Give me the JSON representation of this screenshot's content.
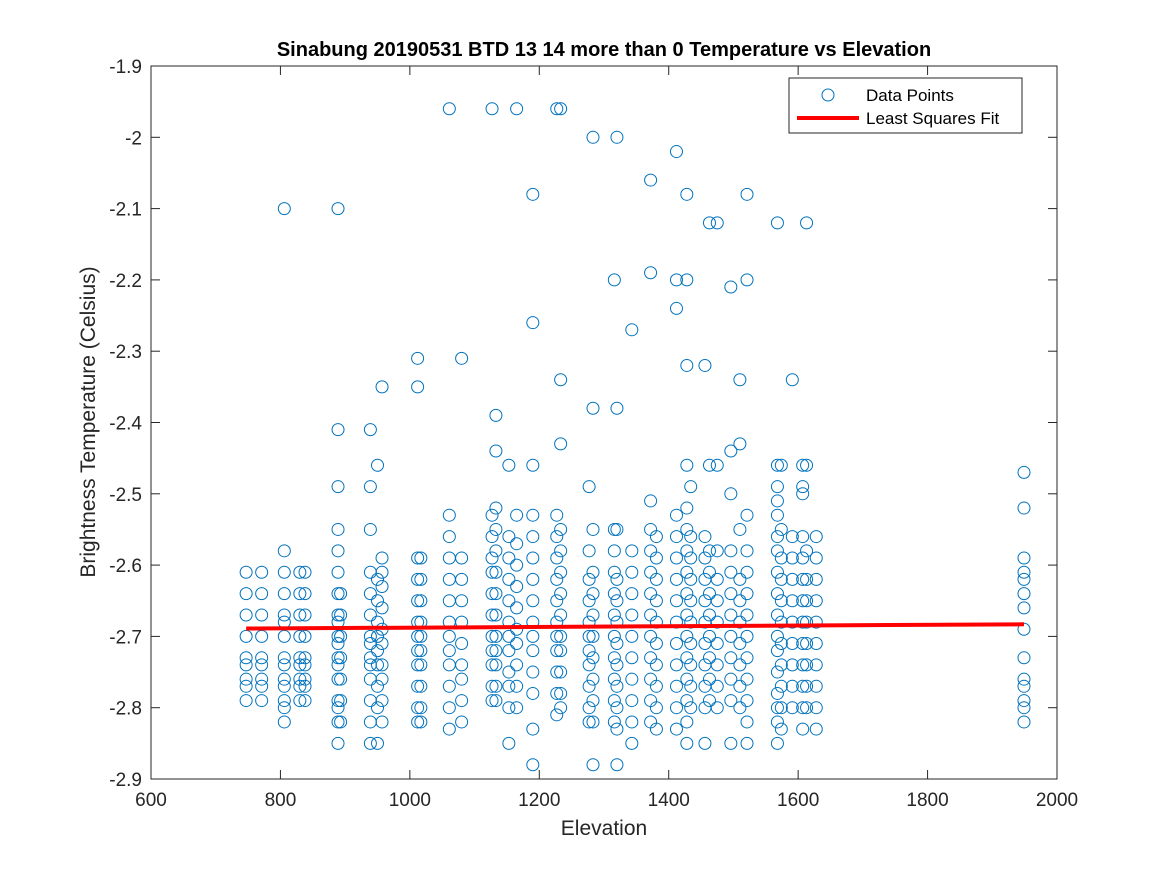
{
  "chart_data": {
    "type": "scatter",
    "title": "Sinabung 20190531 BTD 13 14 more than 0 Temperature vs Elevation",
    "xlabel": "Elevation",
    "ylabel": "Brightness Temperature (Celsius)",
    "xlim": [
      600,
      2000
    ],
    "ylim": [
      -2.9,
      -1.9
    ],
    "xticks": [
      600,
      800,
      1000,
      1200,
      1400,
      1600,
      1800,
      2000
    ],
    "yticks": [
      -1.9,
      -2,
      -2.1,
      -2.2,
      -2.3,
      -2.4,
      -2.5,
      -2.6,
      -2.7,
      -2.8,
      -2.9
    ],
    "xtick_labels": [
      "600",
      "800",
      "1000",
      "1200",
      "1400",
      "1600",
      "1800",
      "2000"
    ],
    "ytick_labels": [
      "-1.9",
      "-2",
      "-2.1",
      "-2.2",
      "-2.3",
      "-2.4",
      "-2.5",
      "-2.6",
      "-2.7",
      "-2.8",
      "-2.9"
    ],
    "grid": false,
    "box": true,
    "legend_position": "top-right",
    "series": [
      {
        "name": "Data Points",
        "kind": "scatter",
        "marker": "circle",
        "color": "#0072BD",
        "columns": [
          {
            "x": 747,
            "y": [
              -2.61,
              -2.64,
              -2.67,
              -2.7,
              -2.73,
              -2.74,
              -2.76,
              -2.77,
              -2.79
            ]
          },
          {
            "x": 771,
            "y": [
              -2.61,
              -2.64,
              -2.67,
              -2.7,
              -2.73,
              -2.74,
              -2.76,
              -2.77,
              -2.79
            ]
          },
          {
            "x": 806,
            "y": [
              -2.1,
              -2.58,
              -2.61,
              -2.64,
              -2.67,
              -2.68,
              -2.7,
              -2.73,
              -2.74,
              -2.76,
              -2.77,
              -2.79,
              -2.8,
              -2.82
            ]
          },
          {
            "x": 830,
            "y": [
              -2.61,
              -2.64,
              -2.67,
              -2.7,
              -2.73,
              -2.74,
              -2.76,
              -2.77,
              -2.79
            ]
          },
          {
            "x": 838,
            "y": [
              -2.61,
              -2.64,
              -2.67,
              -2.7,
              -2.73,
              -2.74,
              -2.76,
              -2.77,
              -2.79
            ]
          },
          {
            "x": 889,
            "y": [
              -2.1,
              -2.41,
              -2.49,
              -2.55,
              -2.58,
              -2.61,
              -2.64,
              -2.67,
              -2.68,
              -2.7,
              -2.71,
              -2.73,
              -2.74,
              -2.76,
              -2.79,
              -2.8,
              -2.82,
              -2.85
            ]
          },
          {
            "x": 893,
            "y": [
              -2.64,
              -2.67,
              -2.7,
              -2.73,
              -2.76,
              -2.79,
              -2.82
            ]
          },
          {
            "x": 939,
            "y": [
              -2.41,
              -2.49,
              -2.55,
              -2.61,
              -2.64,
              -2.67,
              -2.7,
              -2.71,
              -2.73,
              -2.74,
              -2.76,
              -2.79,
              -2.82,
              -2.85
            ]
          },
          {
            "x": 950,
            "y": [
              -2.46,
              -2.62,
              -2.65,
              -2.68,
              -2.7,
              -2.72,
              -2.74,
              -2.77,
              -2.8,
              -2.85
            ]
          },
          {
            "x": 957,
            "y": [
              -2.35,
              -2.59,
              -2.61,
              -2.63,
              -2.66,
              -2.69,
              -2.71,
              -2.74,
              -2.76,
              -2.79,
              -2.82
            ]
          },
          {
            "x": 1012,
            "y": [
              -2.31,
              -2.35,
              -2.59,
              -2.62,
              -2.65,
              -2.68,
              -2.7,
              -2.72,
              -2.74,
              -2.77,
              -2.8,
              -2.82
            ]
          },
          {
            "x": 1017,
            "y": [
              -2.59,
              -2.62,
              -2.65,
              -2.68,
              -2.7,
              -2.72,
              -2.74,
              -2.77,
              -2.8,
              -2.82
            ]
          },
          {
            "x": 1061,
            "y": [
              -1.96,
              -2.53,
              -2.56,
              -2.59,
              -2.62,
              -2.65,
              -2.68,
              -2.7,
              -2.72,
              -2.74,
              -2.77,
              -2.8,
              -2.83
            ]
          },
          {
            "x": 1080,
            "y": [
              -2.31,
              -2.59,
              -2.62,
              -2.65,
              -2.68,
              -2.71,
              -2.74,
              -2.76,
              -2.79,
              -2.82
            ]
          },
          {
            "x": 1127,
            "y": [
              -1.96,
              -2.53,
              -2.56,
              -2.59,
              -2.61,
              -2.64,
              -2.67,
              -2.7,
              -2.72,
              -2.74,
              -2.77,
              -2.79
            ]
          },
          {
            "x": 1133,
            "y": [
              -2.39,
              -2.44,
              -2.52,
              -2.55,
              -2.58,
              -2.61,
              -2.64,
              -2.67,
              -2.7,
              -2.72,
              -2.74,
              -2.77,
              -2.79
            ]
          },
          {
            "x": 1153,
            "y": [
              -2.46,
              -2.56,
              -2.59,
              -2.62,
              -2.65,
              -2.68,
              -2.7,
              -2.72,
              -2.75,
              -2.77,
              -2.8,
              -2.85
            ]
          },
          {
            "x": 1165,
            "y": [
              -1.96,
              -2.53,
              -2.57,
              -2.6,
              -2.63,
              -2.66,
              -2.69,
              -2.71,
              -2.74,
              -2.77,
              -2.8
            ]
          },
          {
            "x": 1190,
            "y": [
              -2.08,
              -2.26,
              -2.46,
              -2.53,
              -2.56,
              -2.59,
              -2.62,
              -2.65,
              -2.68,
              -2.7,
              -2.72,
              -2.75,
              -2.78,
              -2.83,
              -2.88
            ]
          },
          {
            "x": 1227,
            "y": [
              -1.96,
              -2.53,
              -2.56,
              -2.59,
              -2.62,
              -2.65,
              -2.68,
              -2.7,
              -2.72,
              -2.75,
              -2.78,
              -2.81
            ]
          },
          {
            "x": 1233,
            "y": [
              -1.96,
              -2.34,
              -2.43,
              -2.55,
              -2.58,
              -2.61,
              -2.64,
              -2.67,
              -2.7,
              -2.72,
              -2.75,
              -2.78,
              -2.8
            ]
          },
          {
            "x": 1277,
            "y": [
              -2.49,
              -2.58,
              -2.62,
              -2.65,
              -2.68,
              -2.7,
              -2.72,
              -2.74,
              -2.77,
              -2.8,
              -2.82
            ]
          },
          {
            "x": 1283,
            "y": [
              -2.0,
              -2.38,
              -2.55,
              -2.61,
              -2.64,
              -2.67,
              -2.7,
              -2.73,
              -2.76,
              -2.79,
              -2.82,
              -2.88
            ]
          },
          {
            "x": 1316,
            "y": [
              -2.2,
              -2.55,
              -2.58,
              -2.61,
              -2.64,
              -2.67,
              -2.7,
              -2.73,
              -2.76,
              -2.79,
              -2.82
            ]
          },
          {
            "x": 1320,
            "y": [
              -2.0,
              -2.38,
              -2.55,
              -2.62,
              -2.65,
              -2.68,
              -2.71,
              -2.74,
              -2.77,
              -2.8,
              -2.83,
              -2.88
            ]
          },
          {
            "x": 1343,
            "y": [
              -2.27,
              -2.58,
              -2.61,
              -2.64,
              -2.67,
              -2.7,
              -2.73,
              -2.76,
              -2.79,
              -2.82,
              -2.85
            ]
          },
          {
            "x": 1372,
            "y": [
              -2.06,
              -2.19,
              -2.51,
              -2.55,
              -2.58,
              -2.61,
              -2.64,
              -2.67,
              -2.7,
              -2.73,
              -2.76,
              -2.79,
              -2.82
            ]
          },
          {
            "x": 1381,
            "y": [
              -2.56,
              -2.59,
              -2.62,
              -2.65,
              -2.68,
              -2.71,
              -2.74,
              -2.77,
              -2.8,
              -2.83
            ]
          },
          {
            "x": 1412,
            "y": [
              -2.02,
              -2.2,
              -2.24,
              -2.53,
              -2.56,
              -2.59,
              -2.62,
              -2.65,
              -2.68,
              -2.71,
              -2.74,
              -2.77,
              -2.8,
              -2.83
            ]
          },
          {
            "x": 1428,
            "y": [
              -2.08,
              -2.2,
              -2.32,
              -2.46,
              -2.52,
              -2.55,
              -2.58,
              -2.61,
              -2.64,
              -2.67,
              -2.7,
              -2.73,
              -2.76,
              -2.79,
              -2.82,
              -2.85
            ]
          },
          {
            "x": 1434,
            "y": [
              -2.49,
              -2.56,
              -2.59,
              -2.62,
              -2.65,
              -2.68,
              -2.71,
              -2.74,
              -2.77,
              -2.8
            ]
          },
          {
            "x": 1456,
            "y": [
              -2.32,
              -2.56,
              -2.59,
              -2.62,
              -2.65,
              -2.68,
              -2.71,
              -2.74,
              -2.77,
              -2.8,
              -2.85
            ]
          },
          {
            "x": 1463,
            "y": [
              -2.12,
              -2.46,
              -2.58,
              -2.61,
              -2.64,
              -2.67,
              -2.7,
              -2.73,
              -2.76,
              -2.79
            ]
          },
          {
            "x": 1475,
            "y": [
              -2.12,
              -2.46,
              -2.58,
              -2.62,
              -2.65,
              -2.68,
              -2.71,
              -2.74,
              -2.77,
              -2.8
            ]
          },
          {
            "x": 1496,
            "y": [
              -2.21,
              -2.44,
              -2.5,
              -2.58,
              -2.61,
              -2.64,
              -2.67,
              -2.7,
              -2.73,
              -2.76,
              -2.79,
              -2.85
            ]
          },
          {
            "x": 1510,
            "y": [
              -2.34,
              -2.43,
              -2.55,
              -2.62,
              -2.65,
              -2.68,
              -2.71,
              -2.74,
              -2.77,
              -2.8
            ]
          },
          {
            "x": 1521,
            "y": [
              -2.08,
              -2.2,
              -2.53,
              -2.58,
              -2.61,
              -2.64,
              -2.67,
              -2.7,
              -2.73,
              -2.76,
              -2.79,
              -2.82,
              -2.85
            ]
          },
          {
            "x": 1568,
            "y": [
              -2.12,
              -2.46,
              -2.49,
              -2.51,
              -2.53,
              -2.56,
              -2.58,
              -2.61,
              -2.64,
              -2.67,
              -2.7,
              -2.72,
              -2.75,
              -2.78,
              -2.8,
              -2.82,
              -2.85
            ]
          },
          {
            "x": 1574,
            "y": [
              -2.46,
              -2.55,
              -2.59,
              -2.62,
              -2.65,
              -2.68,
              -2.71,
              -2.74,
              -2.77,
              -2.8,
              -2.83
            ]
          },
          {
            "x": 1591,
            "y": [
              -2.34,
              -2.56,
              -2.59,
              -2.62,
              -2.65,
              -2.68,
              -2.71,
              -2.74,
              -2.77,
              -2.8
            ]
          },
          {
            "x": 1607,
            "y": [
              -2.46,
              -2.49,
              -2.5,
              -2.56,
              -2.59,
              -2.62,
              -2.65,
              -2.68,
              -2.71,
              -2.74,
              -2.77,
              -2.8,
              -2.83
            ]
          },
          {
            "x": 1613,
            "y": [
              -2.12,
              -2.46,
              -2.58,
              -2.62,
              -2.65,
              -2.68,
              -2.71,
              -2.74,
              -2.77,
              -2.8
            ]
          },
          {
            "x": 1628,
            "y": [
              -2.56,
              -2.59,
              -2.62,
              -2.65,
              -2.68,
              -2.71,
              -2.74,
              -2.77,
              -2.8,
              -2.83
            ]
          },
          {
            "x": 1949,
            "y": [
              -2.47,
              -2.52,
              -2.59,
              -2.61,
              -2.62,
              -2.64,
              -2.66,
              -2.69,
              -2.73,
              -2.76,
              -2.77,
              -2.79,
              -2.8,
              -2.82
            ]
          }
        ]
      },
      {
        "name": "Least Squares Fit",
        "kind": "line",
        "color": "#FF0000",
        "x": [
          747,
          1949
        ],
        "y": [
          -2.689,
          -2.683
        ]
      }
    ]
  }
}
